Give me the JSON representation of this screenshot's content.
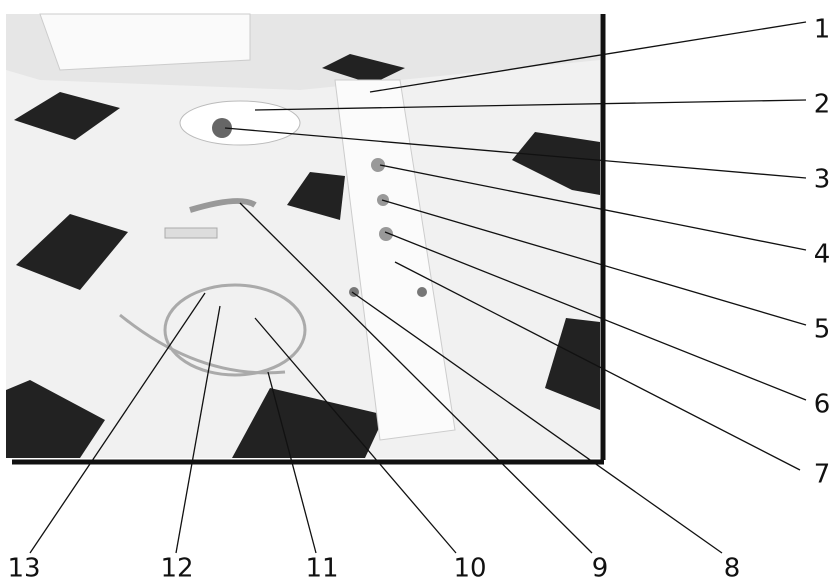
{
  "callouts": [
    {
      "label": "1"
    },
    {
      "label": "2"
    },
    {
      "label": "3"
    },
    {
      "label": "4"
    },
    {
      "label": "5"
    },
    {
      "label": "6"
    },
    {
      "label": "7"
    },
    {
      "label": "8"
    },
    {
      "label": "9"
    },
    {
      "label": "10"
    },
    {
      "label": "11"
    },
    {
      "label": "12"
    },
    {
      "label": "13"
    }
  ]
}
